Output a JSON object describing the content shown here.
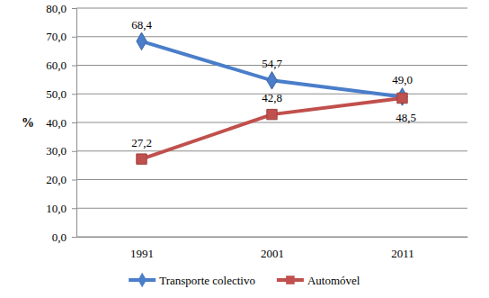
{
  "chart_data": {
    "type": "line",
    "categories": [
      "1991",
      "2001",
      "2011"
    ],
    "series": [
      {
        "name": "Transporte colectivo",
        "color": "#4a7ec9",
        "marker": "diamond",
        "values": [
          68.4,
          54.7,
          49.0
        ],
        "value_labels": [
          "68,4",
          "54,7",
          "49,0"
        ]
      },
      {
        "name": "Automóvel",
        "color": "#c0504d",
        "marker": "square",
        "values": [
          27.2,
          42.8,
          48.5
        ],
        "value_labels": [
          "27,2",
          "42,8",
          "48,5"
        ]
      }
    ],
    "ylim": [
      0,
      80
    ],
    "yticks": [
      {
        "value": 0,
        "label": "0,0"
      },
      {
        "value": 10,
        "label": "10,0"
      },
      {
        "value": 20,
        "label": "20,0"
      },
      {
        "value": 30,
        "label": "30,0"
      },
      {
        "value": 40,
        "label": "40,0"
      },
      {
        "value": 50,
        "label": "50,0"
      },
      {
        "value": 60,
        "label": "60,0"
      },
      {
        "value": 70,
        "label": "70,0"
      },
      {
        "value": 80,
        "label": "80,0"
      }
    ],
    "ylabel": "%",
    "grid": true,
    "legend": "bottom",
    "data_labels": true
  }
}
